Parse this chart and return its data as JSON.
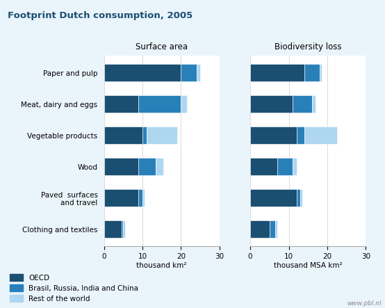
{
  "title": "Footprint Dutch consumption, 2005",
  "subtitle_left": "Surface area",
  "subtitle_right": "Biodiversity loss",
  "xlabel_left": "thousand km²",
  "xlabel_right": "thousand MSA km²",
  "categories": [
    "Paper and pulp",
    "Meat, dairy and eggs",
    "Vegetable products",
    "Wood",
    "Paved  surfaces\nand travel",
    "Clothing and textiles"
  ],
  "colors": {
    "OECD": "#1b4f72",
    "BRIC": "#2980b9",
    "Rest": "#aed6f1"
  },
  "legend_labels": [
    "OECD",
    "Brasil, Russia, India and China",
    "Rest of the world"
  ],
  "surface_area": {
    "OECD": [
      20.0,
      9.0,
      10.0,
      9.0,
      9.0,
      4.5
    ],
    "BRIC": [
      4.0,
      11.0,
      1.0,
      4.5,
      1.0,
      0.5
    ],
    "Rest": [
      1.0,
      1.5,
      8.0,
      2.0,
      0.5,
      0.5
    ]
  },
  "biodiversity": {
    "OECD": [
      14.0,
      11.0,
      12.0,
      7.0,
      12.0,
      5.0
    ],
    "BRIC": [
      4.0,
      5.0,
      2.0,
      4.0,
      1.0,
      1.5
    ],
    "Rest": [
      0.5,
      1.0,
      8.5,
      1.0,
      0.5,
      0.5
    ]
  },
  "xlim": [
    0,
    30
  ],
  "xticks": [
    0,
    10,
    20,
    30
  ],
  "title_bg_color": "#d6eaf8",
  "background_color": "#eaf4fb",
  "plot_bg": "#ffffff",
  "watermark": "www.pbl.nl"
}
